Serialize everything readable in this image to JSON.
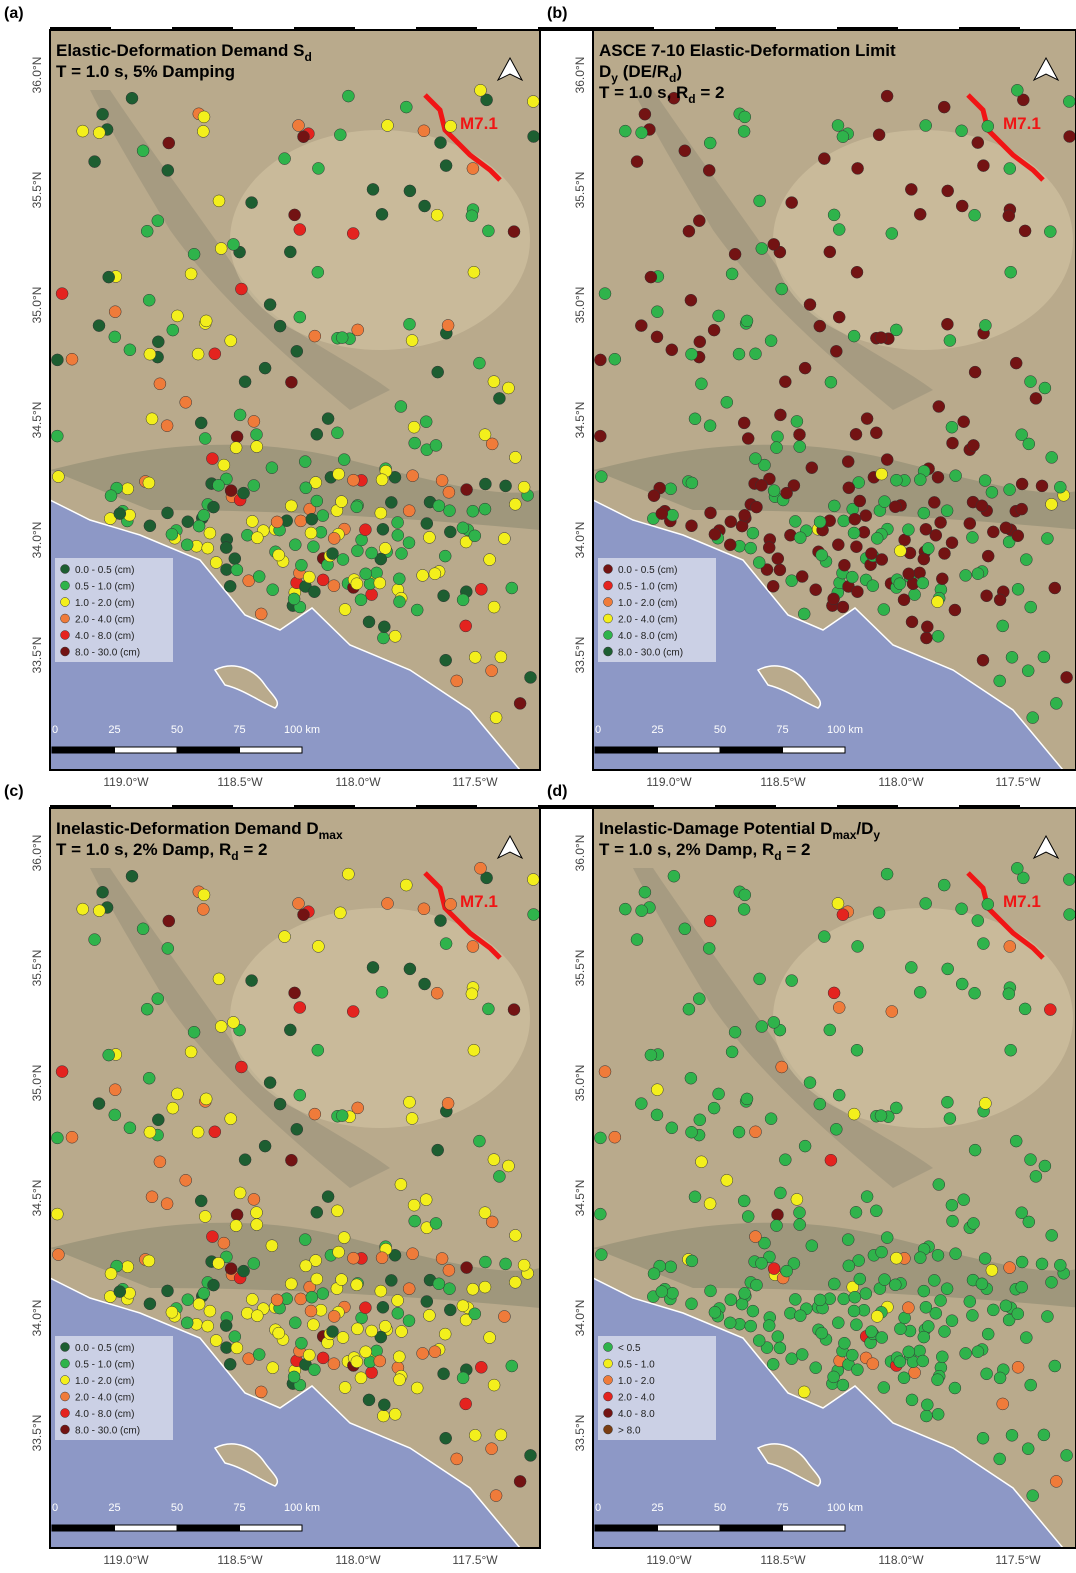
{
  "panels": [
    {
      "label": "(a)",
      "title_lines": [
        [
          "Elastic-Deformation Demand S",
          "d"
        ],
        [
          "T = 1.0 s, 5% Damping"
        ]
      ],
      "legend": [
        {
          "label": "0.0 - 0.5 (cm)",
          "color": "#1d5e31"
        },
        {
          "label": "0.5 - 1.0 (cm)",
          "color": "#2fb34b"
        },
        {
          "label": "1.0 - 2.0 (cm)",
          "color": "#f3ef1c"
        },
        {
          "label": "2.0 - 4.0 (cm)",
          "color": "#ef7b3a"
        },
        {
          "label": "4.0 - 8.0 (cm)",
          "color": "#e4231f"
        },
        {
          "label": "8.0 - 30.0 (cm)",
          "color": "#731313"
        }
      ]
    },
    {
      "label": "(b)",
      "title_lines": [
        [
          "ASCE 7-10 Elastic-Deformation Limit"
        ],
        [
          "D",
          "y",
          " (DE/R",
          "d",
          ")"
        ],
        [
          "T = 1.0 s, R",
          "d",
          " = 2"
        ]
      ],
      "legend": [
        {
          "label": "0.0 - 0.5 (cm)",
          "color": "#731313"
        },
        {
          "label": "0.5 - 1.0 (cm)",
          "color": "#e4231f"
        },
        {
          "label": "1.0 - 2.0 (cm)",
          "color": "#ef7b3a"
        },
        {
          "label": "2.0 - 4.0 (cm)",
          "color": "#f3ef1c"
        },
        {
          "label": "4.0 - 8.0 (cm)",
          "color": "#2fb34b"
        },
        {
          "label": "8.0 - 30.0 (cm)",
          "color": "#1d5e31"
        }
      ]
    },
    {
      "label": "(c)",
      "title_lines": [
        [
          "Inelastic-Deformation Demand D",
          "max"
        ],
        [
          "T = 1.0 s, 2% Damp, R",
          "d",
          " = 2"
        ]
      ],
      "legend": [
        {
          "label": "0.0 - 0.5 (cm)",
          "color": "#1d5e31"
        },
        {
          "label": "0.5 - 1.0 (cm)",
          "color": "#2fb34b"
        },
        {
          "label": "1.0 - 2.0 (cm)",
          "color": "#f3ef1c"
        },
        {
          "label": "2.0 - 4.0 (cm)",
          "color": "#ef7b3a"
        },
        {
          "label": "4.0 - 8.0 (cm)",
          "color": "#e4231f"
        },
        {
          "label": "8.0 - 30.0 (cm)",
          "color": "#731313"
        }
      ]
    },
    {
      "label": "(d)",
      "title_lines": [
        [
          "Inelastic-Damage Potential D",
          "max",
          "/D",
          "y"
        ],
        [
          "T = 1.0 s, 2% Damp, R",
          "d",
          " = 2"
        ]
      ],
      "legend": [
        {
          "label": "< 0.5",
          "color": "#2fb34b"
        },
        {
          "label": "0.5 - 1.0",
          "color": "#f3ef1c"
        },
        {
          "label": "1.0 - 2.0",
          "color": "#ef7b3a"
        },
        {
          "label": "2.0 - 4.0",
          "color": "#e4231f"
        },
        {
          "label": "4.0 - 8.0",
          "color": "#731313"
        },
        {
          "label": "> 8.0",
          "color": "#7a3d12"
        }
      ]
    }
  ],
  "lat_ticks": [
    "36.0°N",
    "35.5°N",
    "35.0°N",
    "34.5°N",
    "34.0°N",
    "33.5°N"
  ],
  "lon_ticks": [
    "119.0°W",
    "118.5°W",
    "118.0°W",
    "117.5°W"
  ],
  "scale_labels": [
    "0",
    "25",
    "50",
    "75",
    "100 km"
  ],
  "rupture_label": "M7.1"
}
